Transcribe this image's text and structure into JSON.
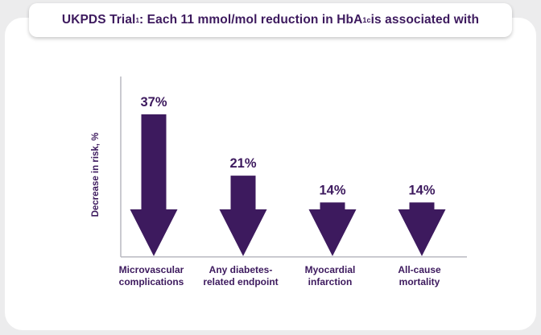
{
  "title": {
    "prefix": "UKPDS Trial",
    "superscript": "1",
    "middle": ": Each 11 mmol/mol reduction in HbA",
    "subscript": "1c",
    "suffix": " is associated with"
  },
  "colors": {
    "arrow": "#3d1a5e",
    "text": "#3d1a5e",
    "axis": "#b9b9c0"
  },
  "chart_data": {
    "type": "bar",
    "title": "UKPDS Trial: Each 11 mmol/mol reduction in HbA1c is associated with",
    "ylabel": "Decrease in risk, %",
    "xlabel": "",
    "ylim": [
      0,
      40
    ],
    "categories": [
      [
        "Microvascular",
        "complications"
      ],
      [
        "Any diabetes-",
        "related endpoint"
      ],
      [
        "Myocardial",
        "infarction"
      ],
      [
        "All-cause",
        "mortality"
      ]
    ],
    "values": [
      37,
      21,
      14,
      14
    ],
    "value_labels": [
      "37%",
      "21%",
      "14%",
      "14%"
    ],
    "bar_style": "downward arrows",
    "grid": false
  }
}
